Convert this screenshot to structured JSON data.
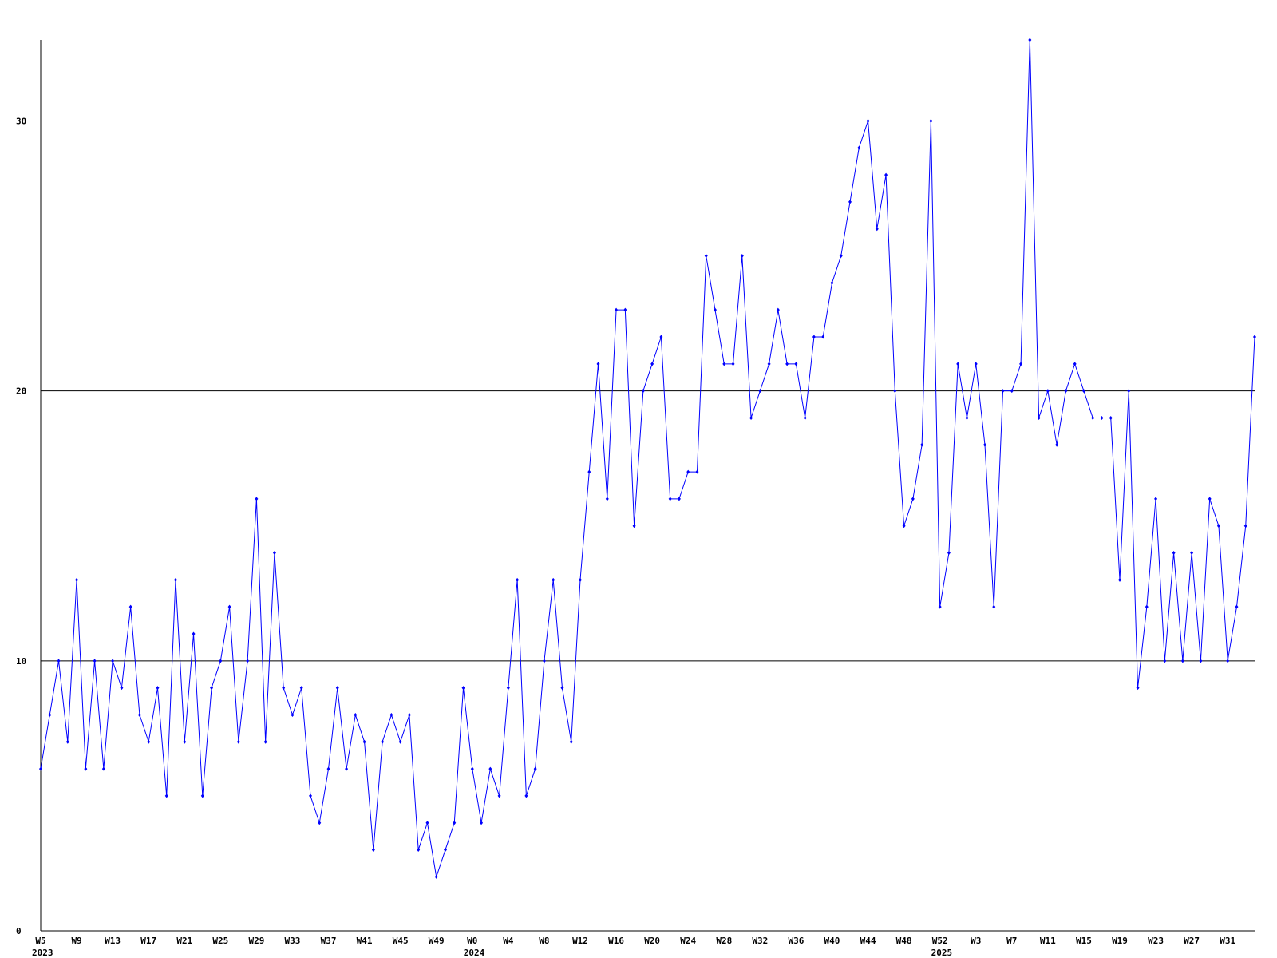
{
  "chart_data": {
    "type": "line",
    "categories": [
      "W5",
      null,
      null,
      null,
      "W9",
      null,
      null,
      null,
      "W13",
      null,
      null,
      null,
      "W17",
      null,
      null,
      null,
      "W21",
      null,
      null,
      null,
      "W25",
      null,
      null,
      null,
      "W29",
      null,
      null,
      null,
      "W33",
      null,
      null,
      null,
      "W37",
      null,
      null,
      null,
      "W41",
      null,
      null,
      null,
      "W45",
      null,
      null,
      null,
      "W49",
      null,
      null,
      null,
      "W0",
      null,
      null,
      null,
      "W4",
      null,
      null,
      null,
      "W8",
      null,
      null,
      null,
      "W12",
      null,
      null,
      null,
      "W16",
      null,
      null,
      null,
      "W20",
      null,
      null,
      null,
      "W24",
      null,
      null,
      null,
      "W28",
      null,
      null,
      null,
      "W32",
      null,
      null,
      null,
      "W36",
      null,
      null,
      null,
      "W40",
      null,
      null,
      null,
      "W44",
      null,
      null,
      null,
      "W48",
      null,
      null,
      null,
      "W52",
      null,
      null,
      null,
      "W3",
      null,
      null,
      null,
      "W7",
      null,
      null,
      null,
      "W11",
      null,
      null,
      null,
      "W15",
      null,
      null,
      null,
      "W19",
      null,
      null,
      null,
      "W23",
      null,
      null,
      null,
      "W27",
      null,
      null,
      null,
      "W31",
      null,
      null,
      null
    ],
    "year_labels": [
      "2023",
      null,
      null,
      null,
      null,
      null,
      null,
      null,
      null,
      null,
      null,
      null,
      null,
      null,
      null,
      null,
      null,
      null,
      null,
      null,
      null,
      null,
      null,
      null,
      null,
      null,
      null,
      null,
      null,
      null,
      null,
      null,
      null,
      null,
      null,
      null,
      null,
      null,
      null,
      null,
      null,
      null,
      null,
      null,
      null,
      null,
      null,
      null,
      "2024",
      null,
      null,
      null,
      null,
      null,
      null,
      null,
      null,
      null,
      null,
      null,
      null,
      null,
      null,
      null,
      null,
      null,
      null,
      null,
      null,
      null,
      null,
      null,
      null,
      null,
      null,
      null,
      null,
      null,
      null,
      null,
      null,
      null,
      null,
      null,
      null,
      null,
      null,
      null,
      null,
      null,
      null,
      null,
      null,
      null,
      null,
      null,
      null,
      null,
      null,
      null,
      "2025",
      null,
      null,
      null,
      null,
      null,
      null,
      null,
      null,
      null,
      null,
      null,
      null,
      null,
      null,
      null,
      null,
      null,
      null,
      null,
      null,
      null,
      null,
      null,
      null,
      null,
      null,
      null,
      null,
      null,
      null,
      null,
      null,
      null,
      null,
      null
    ],
    "series": [
      {
        "color": "#0000ff",
        "values": [
          6,
          8,
          10,
          7,
          13,
          6,
          10,
          6,
          10,
          9,
          12,
          8,
          7,
          9,
          5,
          13,
          7,
          11,
          5,
          9,
          10,
          12,
          7,
          10,
          16,
          7,
          14,
          9,
          8,
          9,
          5,
          4,
          6,
          9,
          6,
          8,
          7,
          3,
          7,
          8,
          7,
          8,
          3,
          4,
          2,
          3,
          4,
          9,
          6,
          4,
          6,
          5,
          9,
          13,
          5,
          6,
          10,
          13,
          9,
          7,
          13,
          17,
          21,
          16,
          23,
          23,
          15,
          20,
          21,
          22,
          16,
          16,
          17,
          17,
          25,
          23,
          21,
          21,
          25,
          19,
          20,
          21,
          23,
          21,
          21,
          19,
          22,
          22,
          24,
          25,
          27,
          29,
          30,
          26,
          28,
          20,
          15,
          16,
          18,
          30,
          12,
          14,
          21,
          19,
          21,
          18,
          12,
          20,
          20,
          21,
          33,
          19,
          20,
          18,
          20,
          21,
          20,
          19,
          19,
          19,
          13,
          20,
          9,
          12,
          16,
          10,
          14,
          10,
          14,
          10,
          16,
          15,
          10,
          12,
          15,
          22
        ]
      }
    ],
    "ylim": [
      0,
      33
    ],
    "yticks": [
      0,
      10,
      20,
      30
    ],
    "grid": true
  }
}
